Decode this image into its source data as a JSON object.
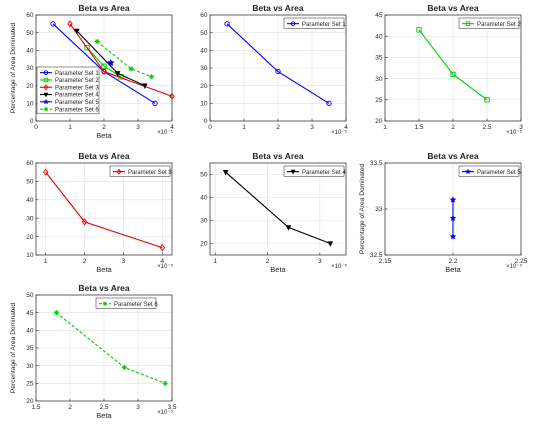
{
  "chart_data": [
    {
      "type": "line",
      "title": "Beta vs Area",
      "xlabel": "Beta",
      "ylabel": "Percentage of Area Dominated",
      "x_exponent": "×10⁻⁵",
      "xlim": [
        0,
        4
      ],
      "ylim": [
        0,
        60
      ],
      "xticks": [
        0,
        1,
        2,
        3,
        4
      ],
      "yticks": [
        0,
        10,
        20,
        30,
        40,
        50,
        60
      ],
      "legend_position": "bottom-left",
      "series": [
        {
          "name": "Parameter Set 1",
          "color": "#0000ff",
          "marker": "circle",
          "dash": "solid",
          "x": [
            0.5,
            2,
            3.5
          ],
          "y": [
            55,
            28,
            10
          ]
        },
        {
          "name": "Parameter Set 2",
          "color": "#00cc00",
          "marker": "square",
          "dash": "solid",
          "x": [
            1.5,
            2,
            2.5
          ],
          "y": [
            41.5,
            31,
            25
          ]
        },
        {
          "name": "Parameter Set 3",
          "color": "#e00000",
          "marker": "diamond",
          "dash": "solid",
          "x": [
            1,
            2,
            4
          ],
          "y": [
            55,
            28,
            14
          ]
        },
        {
          "name": "Parameter Set 4",
          "color": "#000000",
          "marker": "triangle-down",
          "dash": "solid",
          "x": [
            1.2,
            2.4,
            3.2
          ],
          "y": [
            51,
            27,
            20
          ]
        },
        {
          "name": "Parameter Set 5",
          "color": "#0000ff",
          "marker": "star",
          "dash": "solid",
          "x": [
            2.2,
            2.2,
            2.2
          ],
          "y": [
            33.1,
            32.9,
            32.7
          ]
        },
        {
          "name": "Parameter Set 6",
          "color": "#00cc00",
          "marker": "asterisk",
          "dash": "dashed",
          "x": [
            1.8,
            2.8,
            3.4
          ],
          "y": [
            45,
            29.5,
            25
          ]
        }
      ]
    },
    {
      "type": "line",
      "title": "Beta vs Area",
      "xlabel": "",
      "ylabel": "",
      "x_exponent": "×10⁻⁵",
      "xlim": [
        0,
        4
      ],
      "ylim": [
        0,
        60
      ],
      "xticks": [
        0,
        1,
        2,
        3,
        4
      ],
      "yticks": [
        0,
        10,
        20,
        30,
        40,
        50,
        60
      ],
      "legend_position": "top-right",
      "series": [
        {
          "name": "Parameter Set 1",
          "color": "#0000ff",
          "marker": "circle",
          "dash": "solid",
          "x": [
            0.5,
            2,
            3.5
          ],
          "y": [
            55,
            28,
            10
          ]
        }
      ]
    },
    {
      "type": "line",
      "title": "Beta vs Area",
      "xlabel": "",
      "ylabel": "",
      "x_exponent": "×10⁻⁵",
      "xlim": [
        1,
        3
      ],
      "ylim": [
        20,
        45
      ],
      "xticks": [
        1,
        1.5,
        2,
        2.5,
        3
      ],
      "yticks": [
        20,
        25,
        30,
        35,
        40,
        45
      ],
      "legend_position": "top-right",
      "series": [
        {
          "name": "Parameter Set 2",
          "color": "#00cc00",
          "marker": "square",
          "dash": "solid",
          "x": [
            1.5,
            2,
            2.5
          ],
          "y": [
            41.5,
            31,
            25
          ]
        }
      ]
    },
    {
      "type": "line",
      "title": "Beta vs Area",
      "xlabel": "Beta",
      "ylabel": "",
      "x_exponent": "×10⁻⁵",
      "xlim": [
        0.75,
        4.25
      ],
      "ylim": [
        10,
        60
      ],
      "xticks": [
        1,
        2,
        3,
        4
      ],
      "yticks": [
        10,
        20,
        30,
        40,
        50,
        60
      ],
      "legend_position": "top-right",
      "series": [
        {
          "name": "Parameter Set 3",
          "color": "#e00000",
          "marker": "diamond",
          "dash": "solid",
          "x": [
            1,
            2,
            4
          ],
          "y": [
            55,
            28,
            14
          ]
        }
      ]
    },
    {
      "type": "line",
      "title": "Beta vs Area",
      "xlabel": "Beta",
      "ylabel": "",
      "x_exponent": "×10⁻⁵",
      "xlim": [
        0.9,
        3.5
      ],
      "ylim": [
        15,
        55
      ],
      "xticks": [
        1,
        2,
        3
      ],
      "yticks": [
        20,
        30,
        40,
        50
      ],
      "legend_position": "top-right",
      "series": [
        {
          "name": "Parameter Set 4",
          "color": "#000000",
          "marker": "triangle-down",
          "dash": "solid",
          "x": [
            1.2,
            2.4,
            3.2
          ],
          "y": [
            51,
            27,
            20
          ]
        }
      ]
    },
    {
      "type": "line",
      "title": "Beta vs Area",
      "xlabel": "Beta",
      "ylabel": "Percentage of Area Dominated",
      "x_exponent": "×10⁻⁵",
      "xlim": [
        2.15,
        2.25
      ],
      "ylim": [
        32.5,
        33.5
      ],
      "xticks": [
        2.15,
        2.2,
        2.25
      ],
      "yticks": [
        32.5,
        33,
        33.5
      ],
      "legend_position": "top-right",
      "series": [
        {
          "name": "Parameter Set 5",
          "color": "#0000ff",
          "marker": "star",
          "dash": "solid",
          "x": [
            2.2,
            2.2,
            2.2
          ],
          "y": [
            33.1,
            32.9,
            32.7
          ]
        }
      ]
    },
    {
      "type": "line",
      "title": "Beta vs Area",
      "xlabel": "Beta",
      "ylabel": "Percentage of Area Dominated",
      "x_exponent": "×10⁻⁵",
      "xlim": [
        1.5,
        3.5
      ],
      "ylim": [
        20,
        50
      ],
      "xticks": [
        1.5,
        2,
        2.5,
        3,
        3.5
      ],
      "yticks": [
        20,
        25,
        30,
        35,
        40,
        45,
        50
      ],
      "legend_position": "top-left",
      "series": [
        {
          "name": "Parameter Set 6",
          "color": "#00cc00",
          "marker": "asterisk",
          "dash": "dashed",
          "x": [
            1.8,
            2.8,
            3.4
          ],
          "y": [
            45,
            29.5,
            25
          ]
        }
      ]
    }
  ]
}
